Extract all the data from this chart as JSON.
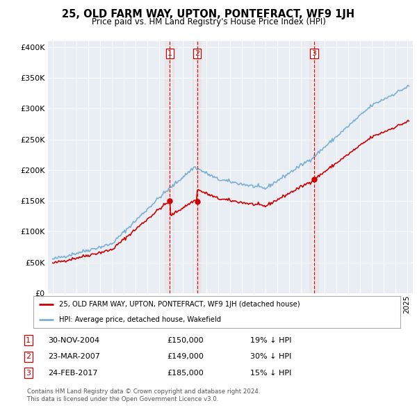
{
  "title": "25, OLD FARM WAY, UPTON, PONTEFRACT, WF9 1JH",
  "subtitle": "Price paid vs. HM Land Registry's House Price Index (HPI)",
  "legend_label_red": "25, OLD FARM WAY, UPTON, PONTEFRACT, WF9 1JH (detached house)",
  "legend_label_blue": "HPI: Average price, detached house, Wakefield",
  "footnote1": "Contains HM Land Registry data © Crown copyright and database right 2024.",
  "footnote2": "This data is licensed under the Open Government Licence v3.0.",
  "transactions": [
    {
      "num": "1",
      "date": "30-NOV-2004",
      "price": "£150,000",
      "hpi": "19% ↓ HPI",
      "year": 2004.917
    },
    {
      "num": "2",
      "date": "23-MAR-2007",
      "price": "£149,000",
      "hpi": "30% ↓ HPI",
      "year": 2007.23
    },
    {
      "num": "3",
      "date": "24-FEB-2017",
      "price": "£185,000",
      "hpi": "15% ↓ HPI",
      "year": 2017.15
    }
  ],
  "transaction_values": [
    150000,
    149000,
    185000
  ],
  "ylim": [
    0,
    410000
  ],
  "yticks": [
    0,
    50000,
    100000,
    150000,
    200000,
    250000,
    300000,
    350000,
    400000
  ],
  "ytick_labels": [
    "£0",
    "£50K",
    "£100K",
    "£150K",
    "£200K",
    "£250K",
    "£300K",
    "£350K",
    "£400K"
  ],
  "color_red": "#cc0000",
  "color_blue": "#7ab0d4",
  "color_vline": "#cc0000",
  "background_chart": "#e8eef4",
  "background_fig": "#ffffff",
  "xlim_left": 1994.6,
  "xlim_right": 2025.5
}
